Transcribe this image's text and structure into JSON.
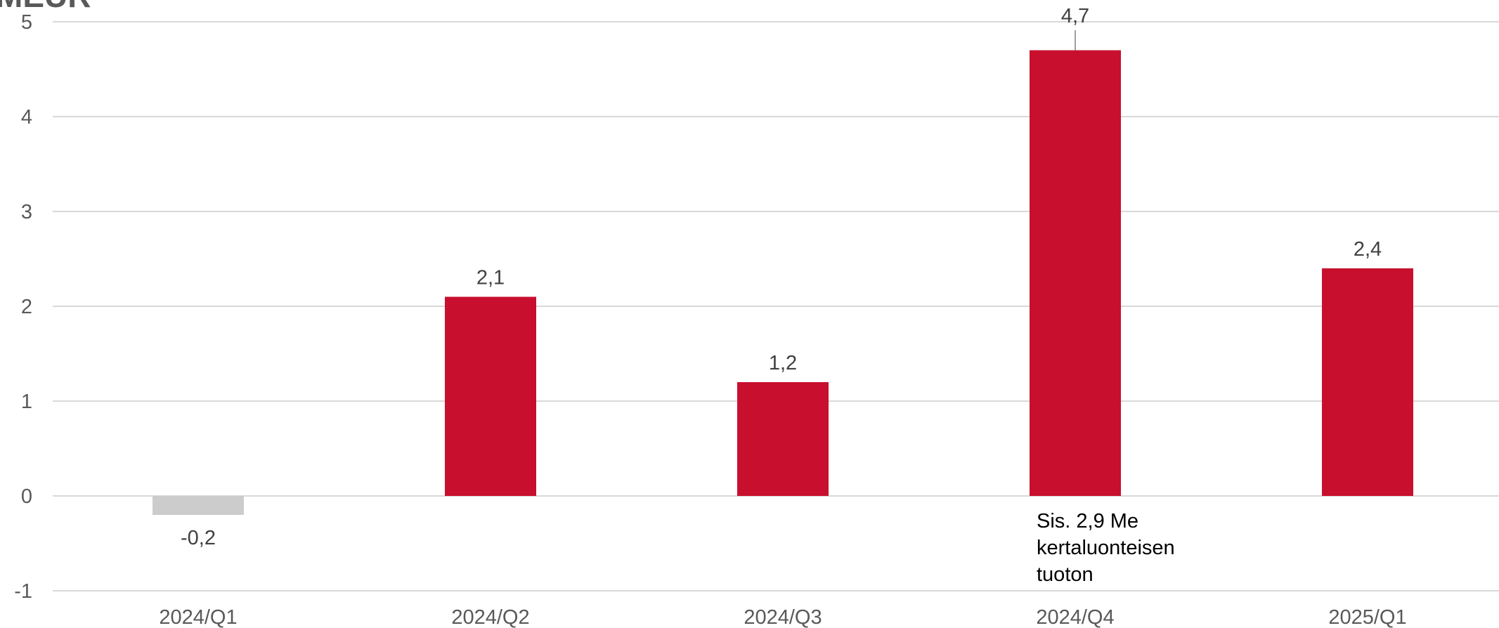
{
  "chart_data": {
    "type": "bar",
    "title": "MEUR",
    "xlabel": "",
    "ylabel": "",
    "ylim": [
      -1,
      5
    ],
    "y_ticks": [
      "-1",
      "0",
      "1",
      "2",
      "3",
      "4",
      "5"
    ],
    "grid": true,
    "categories": [
      "2024/Q1",
      "2024/Q2",
      "2024/Q3",
      "2024/Q4",
      "2025/Q1"
    ],
    "values": [
      -0.2,
      2.1,
      1.2,
      4.7,
      2.4
    ],
    "data_labels": [
      "-0,2",
      "2,1",
      "1,2",
      "4,7",
      "2,4"
    ],
    "colors": {
      "positive": "#c8102e",
      "negative": "#cccccc"
    },
    "annotations": [
      {
        "category": "2024/Q4",
        "lines": [
          "Sis. 2,9 Me",
          "kertaluonteisen",
          "tuoton"
        ]
      }
    ]
  }
}
